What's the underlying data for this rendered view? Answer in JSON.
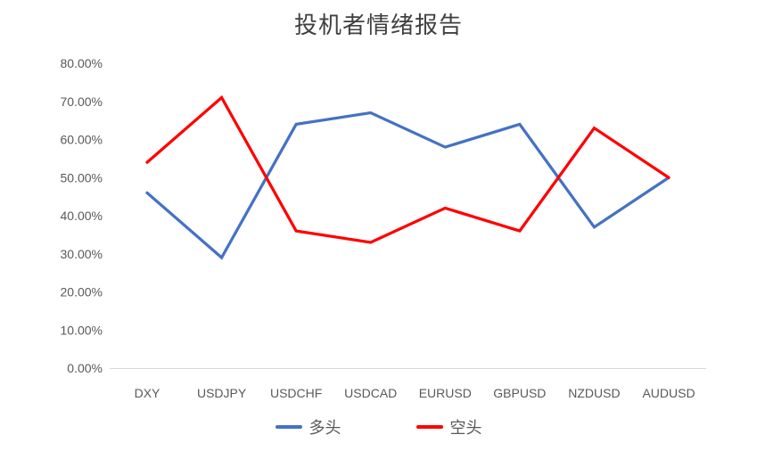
{
  "title": "投机者情绪报告",
  "colors": {
    "long_series": "#4472C4",
    "short_series": "#FF0000",
    "axis_line": "#D9D9D9",
    "tick_text": "#595959",
    "title_text": "#404040"
  },
  "chart_data": {
    "type": "line",
    "title": "投机者情绪报告",
    "categories": [
      "DXY",
      "USDJPY",
      "USDCHF",
      "USDCAD",
      "EURUSD",
      "GBPUSD",
      "NZDUSD",
      "AUDUSD"
    ],
    "series": [
      {
        "name": "多头",
        "color": "#4472C4",
        "values": [
          46,
          29,
          64,
          67,
          58,
          64,
          37,
          50
        ]
      },
      {
        "name": "空头",
        "color": "#FF0000",
        "values": [
          54,
          71,
          36,
          33,
          42,
          36,
          63,
          50
        ]
      }
    ],
    "values_unit": "percent",
    "ylim": [
      0,
      80
    ],
    "ytick_step": 10,
    "ytick_labels": [
      "0.00%",
      "10.00%",
      "20.00%",
      "30.00%",
      "40.00%",
      "50.00%",
      "60.00%",
      "70.00%",
      "80.00%"
    ],
    "xlabel": "",
    "ylabel": "",
    "grid": false,
    "legend_position": "bottom",
    "axis_color": "#D9D9D9"
  }
}
